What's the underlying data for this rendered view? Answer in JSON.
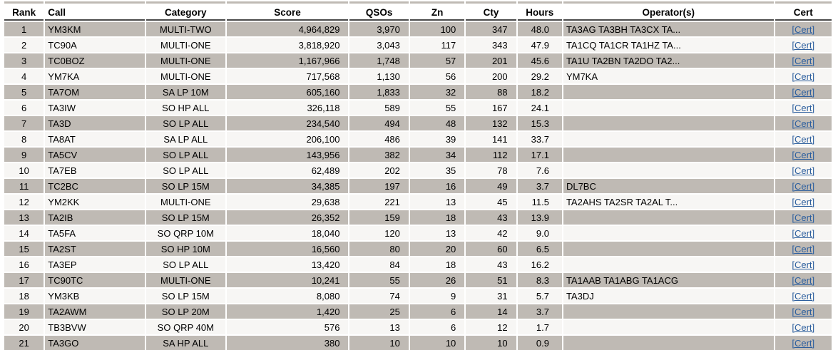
{
  "colors": {
    "row_shaded": "#bfbab4",
    "row_plain": "#f7f6f4",
    "link_blue": "#2d5f9e",
    "header_rule": "#4a4a4a",
    "header_text": "#000000",
    "body_text": "#000000",
    "page_background": "#ffffff"
  },
  "table": {
    "cert_label": "[Cert]",
    "columns": [
      {
        "key": "rank",
        "label": "Rank"
      },
      {
        "key": "call",
        "label": "Call"
      },
      {
        "key": "category",
        "label": "Category"
      },
      {
        "key": "score",
        "label": "Score"
      },
      {
        "key": "qsos",
        "label": "QSOs"
      },
      {
        "key": "zn",
        "label": "Zn"
      },
      {
        "key": "cty",
        "label": "Cty"
      },
      {
        "key": "hours",
        "label": "Hours"
      },
      {
        "key": "operators",
        "label": "Operator(s)"
      },
      {
        "key": "cert",
        "label": "Cert"
      }
    ],
    "rows": [
      {
        "rank": "1",
        "call": "YM3KM",
        "category": "MULTI-TWO",
        "score": "4,964,829",
        "qsos": "3,970",
        "zn": "100",
        "cty": "347",
        "hours": "48.0",
        "operators": "TA3AG TA3BH TA3CX TA..."
      },
      {
        "rank": "2",
        "call": "TC90A",
        "category": "MULTI-ONE",
        "score": "3,818,920",
        "qsos": "3,043",
        "zn": "117",
        "cty": "343",
        "hours": "47.9",
        "operators": "TA1CQ TA1CR TA1HZ TA..."
      },
      {
        "rank": "3",
        "call": "TC0BOZ",
        "category": "MULTI-ONE",
        "score": "1,167,966",
        "qsos": "1,748",
        "zn": "57",
        "cty": "201",
        "hours": "45.6",
        "operators": "TA1U TA2BN TA2DO TA2..."
      },
      {
        "rank": "4",
        "call": "YM7KA",
        "category": "MULTI-ONE",
        "score": "717,568",
        "qsos": "1,130",
        "zn": "56",
        "cty": "200",
        "hours": "29.2",
        "operators": "YM7KA"
      },
      {
        "rank": "5",
        "call": "TA7OM",
        "category": "SA LP 10M",
        "score": "605,160",
        "qsos": "1,833",
        "zn": "32",
        "cty": "88",
        "hours": "18.2",
        "operators": ""
      },
      {
        "rank": "6",
        "call": "TA3IW",
        "category": "SO HP ALL",
        "score": "326,118",
        "qsos": "589",
        "zn": "55",
        "cty": "167",
        "hours": "24.1",
        "operators": ""
      },
      {
        "rank": "7",
        "call": "TA3D",
        "category": "SO LP ALL",
        "score": "234,540",
        "qsos": "494",
        "zn": "48",
        "cty": "132",
        "hours": "15.3",
        "operators": ""
      },
      {
        "rank": "8",
        "call": "TA8AT",
        "category": "SA LP ALL",
        "score": "206,100",
        "qsos": "486",
        "zn": "39",
        "cty": "141",
        "hours": "33.7",
        "operators": ""
      },
      {
        "rank": "9",
        "call": "TA5CV",
        "category": "SO LP ALL",
        "score": "143,956",
        "qsos": "382",
        "zn": "34",
        "cty": "112",
        "hours": "17.1",
        "operators": ""
      },
      {
        "rank": "10",
        "call": "TA7EB",
        "category": "SO LP ALL",
        "score": "62,489",
        "qsos": "202",
        "zn": "35",
        "cty": "78",
        "hours": "7.6",
        "operators": ""
      },
      {
        "rank": "11",
        "call": "TC2BC",
        "category": "SO LP 15M",
        "score": "34,385",
        "qsos": "197",
        "zn": "16",
        "cty": "49",
        "hours": "3.7",
        "operators": "DL7BC"
      },
      {
        "rank": "12",
        "call": "YM2KK",
        "category": "MULTI-ONE",
        "score": "29,638",
        "qsos": "221",
        "zn": "13",
        "cty": "45",
        "hours": "11.5",
        "operators": "TA2AHS TA2SR TA2AL T..."
      },
      {
        "rank": "13",
        "call": "TA2IB",
        "category": "SO LP 15M",
        "score": "26,352",
        "qsos": "159",
        "zn": "18",
        "cty": "43",
        "hours": "13.9",
        "operators": ""
      },
      {
        "rank": "14",
        "call": "TA5FA",
        "category": "SO QRP 10M",
        "score": "18,040",
        "qsos": "120",
        "zn": "13",
        "cty": "42",
        "hours": "9.0",
        "operators": ""
      },
      {
        "rank": "15",
        "call": "TA2ST",
        "category": "SO HP 10M",
        "score": "16,560",
        "qsos": "80",
        "zn": "20",
        "cty": "60",
        "hours": "6.5",
        "operators": ""
      },
      {
        "rank": "16",
        "call": "TA3EP",
        "category": "SO LP ALL",
        "score": "13,420",
        "qsos": "84",
        "zn": "18",
        "cty": "43",
        "hours": "16.2",
        "operators": ""
      },
      {
        "rank": "17",
        "call": "TC90TC",
        "category": "MULTI-ONE",
        "score": "10,241",
        "qsos": "55",
        "zn": "26",
        "cty": "51",
        "hours": "8.3",
        "operators": "TA1AAB TA1ABG TA1ACG"
      },
      {
        "rank": "18",
        "call": "YM3KB",
        "category": "SO LP 15M",
        "score": "8,080",
        "qsos": "74",
        "zn": "9",
        "cty": "31",
        "hours": "5.7",
        "operators": "TA3DJ"
      },
      {
        "rank": "19",
        "call": "TA2AWM",
        "category": "SO LP 20M",
        "score": "1,420",
        "qsos": "25",
        "zn": "6",
        "cty": "14",
        "hours": "3.7",
        "operators": ""
      },
      {
        "rank": "20",
        "call": "TB3BVW",
        "category": "SO QRP 40M",
        "score": "576",
        "qsos": "13",
        "zn": "6",
        "cty": "12",
        "hours": "1.7",
        "operators": ""
      },
      {
        "rank": "21",
        "call": "TA3GO",
        "category": "SA HP ALL",
        "score": "380",
        "qsos": "10",
        "zn": "10",
        "cty": "10",
        "hours": "0.9",
        "operators": ""
      }
    ]
  }
}
